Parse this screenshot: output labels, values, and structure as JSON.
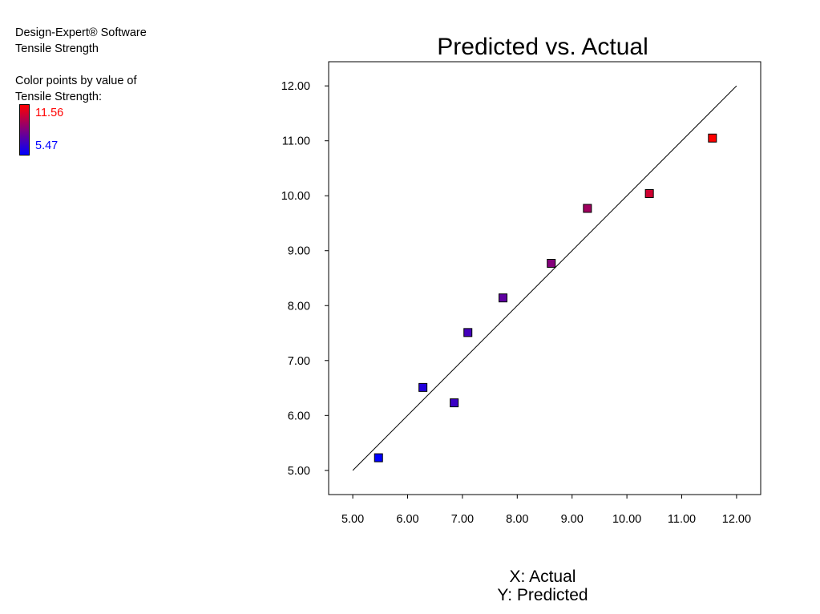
{
  "header": {
    "software": "Design-Expert® Software",
    "response": "Tensile Strength"
  },
  "color_legend": {
    "caption_line1": "Color points by value of",
    "caption_line2": "Tensile Strength:",
    "max_label": "11.56",
    "min_label": "5.47",
    "max_color": "#ff0000",
    "min_color": "#0000ff"
  },
  "axis_captions": {
    "x": "X: Actual",
    "y": "Y: Predicted"
  },
  "chart_data": {
    "type": "scatter",
    "title": "Predicted vs. Actual",
    "xlabel": "",
    "ylabel": "",
    "xlim": [
      4.56,
      12.44
    ],
    "ylim": [
      4.56,
      12.44
    ],
    "x_ticks": [
      "5.00",
      "6.00",
      "7.00",
      "8.00",
      "9.00",
      "10.00",
      "11.00",
      "12.00"
    ],
    "y_ticks": [
      "5.00",
      "6.00",
      "7.00",
      "8.00",
      "9.00",
      "10.00",
      "11.00",
      "12.00"
    ],
    "reference_line": {
      "from": [
        5.0,
        5.0
      ],
      "to": [
        12.0,
        12.0
      ]
    },
    "grid": false,
    "marker": "square",
    "points": [
      {
        "x": 5.47,
        "y": 5.23
      },
      {
        "x": 6.28,
        "y": 6.51
      },
      {
        "x": 6.85,
        "y": 6.23
      },
      {
        "x": 7.1,
        "y": 7.51
      },
      {
        "x": 7.74,
        "y": 8.14
      },
      {
        "x": 8.62,
        "y": 8.77
      },
      {
        "x": 9.28,
        "y": 9.77
      },
      {
        "x": 10.41,
        "y": 10.04
      },
      {
        "x": 11.56,
        "y": 11.05
      }
    ]
  }
}
